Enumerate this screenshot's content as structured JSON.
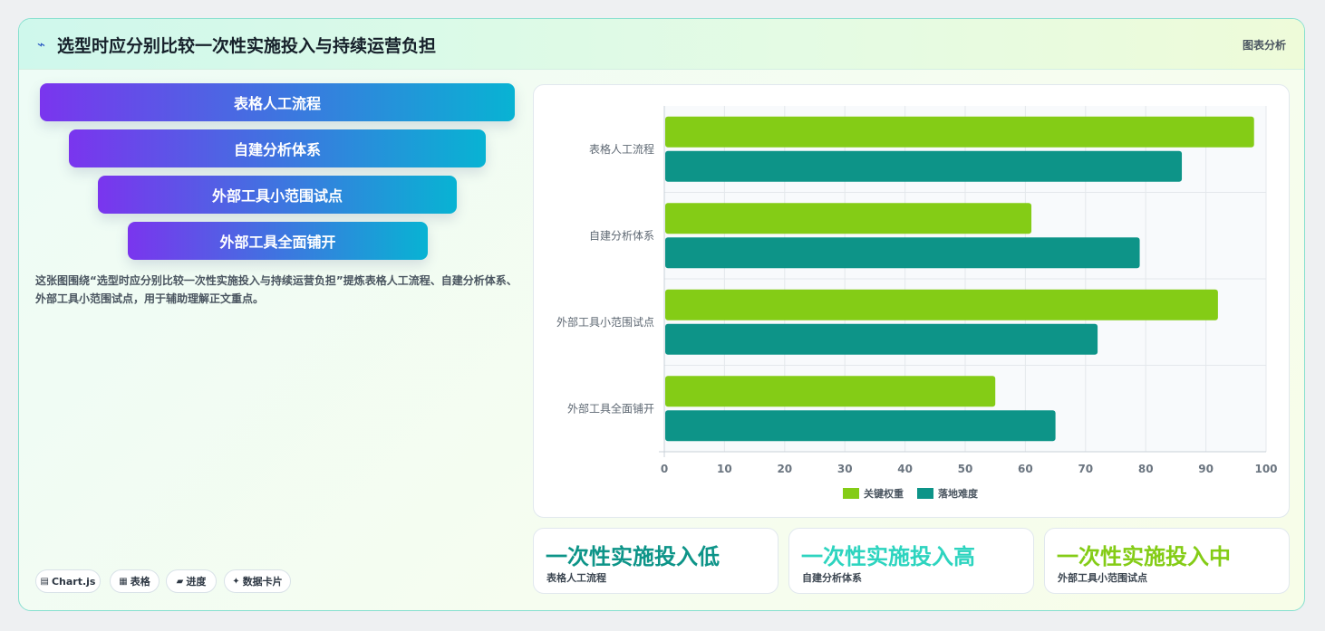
{
  "header": {
    "icon": "trend-line-icon",
    "title": "选型时应分别比较一次性实施投入与持续运营负担",
    "tag": "图表分析"
  },
  "funnel": {
    "items": [
      "表格人工流程",
      "自建分析体系",
      "外部工具小范围试点",
      "外部工具全面铺开"
    ]
  },
  "description": "这张图围绕“选型时应分别比较一次性实施投入与持续运营负担”提炼表格人工流程、自建分析体系、外部工具小范围试点，用于辅助理解正文重点。",
  "chips": [
    {
      "icon": "▤",
      "icon_name": "chart-icon",
      "label": "Chart.js"
    },
    {
      "icon": "▦",
      "icon_name": "table-icon",
      "label": "表格"
    },
    {
      "icon": "▰",
      "icon_name": "progress-icon",
      "label": "进度"
    },
    {
      "icon": "✦",
      "icon_name": "sparkle-icon",
      "label": "数据卡片"
    }
  ],
  "chart_data": {
    "type": "bar",
    "orientation": "horizontal",
    "categories": [
      "表格人工流程",
      "自建分析体系",
      "外部工具小范围试点",
      "外部工具全面铺开"
    ],
    "series": [
      {
        "name": "关键权重",
        "color": "#84cc16",
        "values": [
          98,
          61,
          92,
          55
        ]
      },
      {
        "name": "落地难度",
        "color": "#0d9488",
        "values": [
          86,
          79,
          72,
          65
        ]
      }
    ],
    "xlim": [
      0,
      100
    ],
    "xticks": [
      0,
      10,
      20,
      30,
      40,
      50,
      60,
      70,
      80,
      90,
      100
    ],
    "grid": true,
    "legend": "bottom"
  },
  "kpis": [
    {
      "value": "一次性实施投入低",
      "label": "表格人工流程",
      "color": "#0d9488"
    },
    {
      "value": "一次性实施投入高",
      "label": "自建分析体系",
      "color": "#2dd4bf"
    },
    {
      "value": "一次性实施投入中",
      "label": "外部工具小范围试点",
      "color": "#84cc16"
    }
  ]
}
